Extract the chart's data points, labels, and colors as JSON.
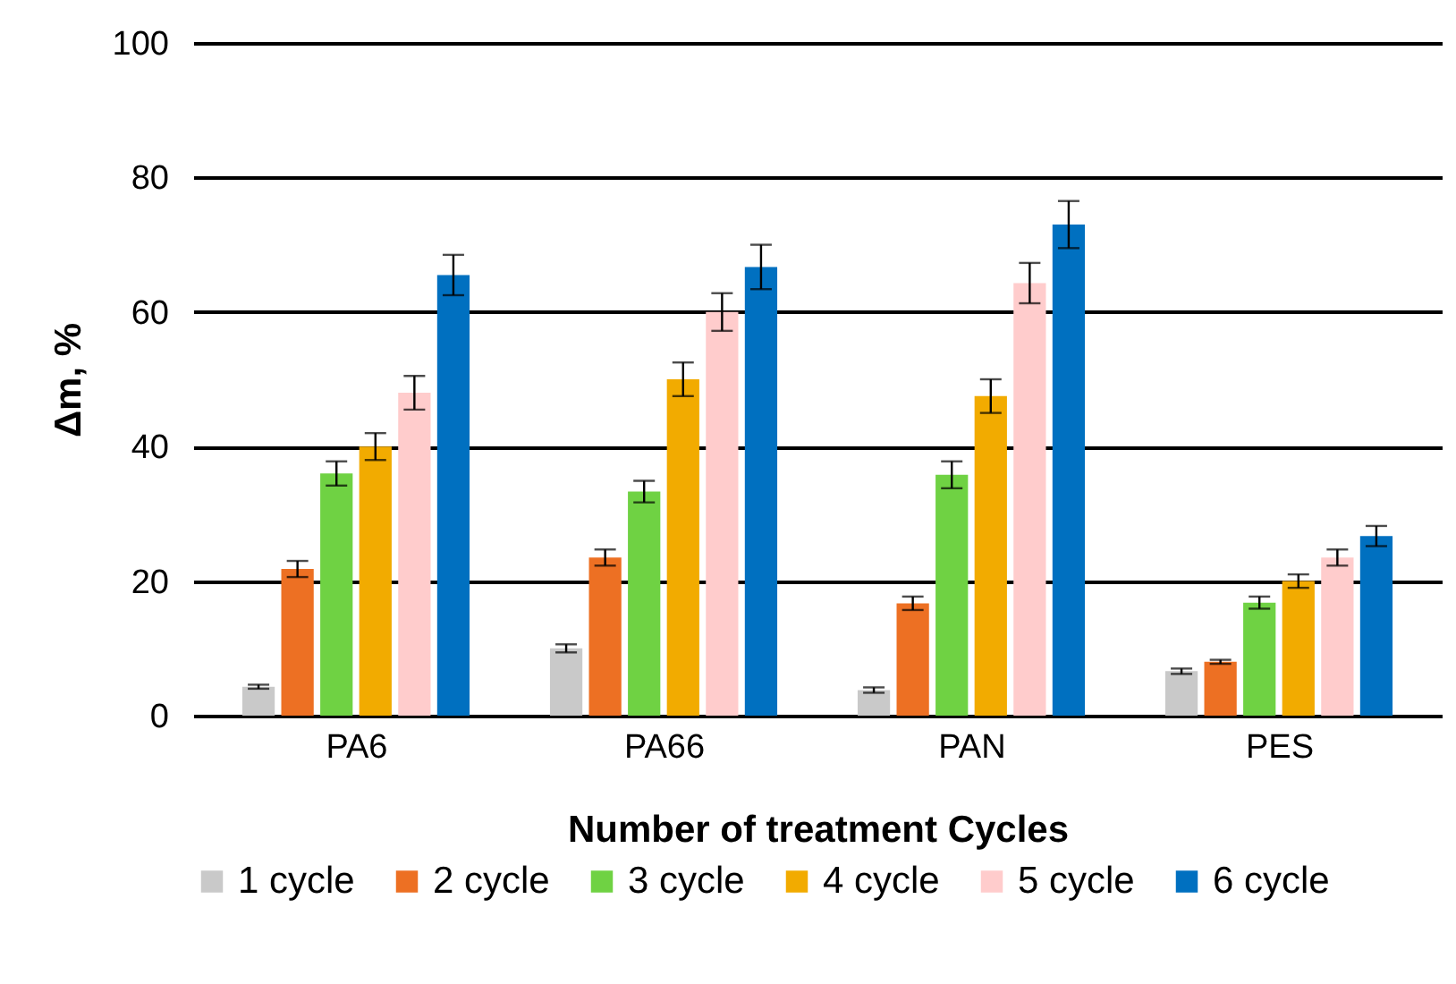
{
  "chart_data": {
    "type": "bar",
    "xlabel": "Number of treatment Cycles",
    "ylabel": "Δm, %",
    "categories": [
      "PA6",
      "PA66",
      "PAN",
      "PES"
    ],
    "series": [
      {
        "name": "1 cycle",
        "color": "#c9c9c9",
        "values": [
          4.3,
          10,
          3.8,
          6.6
        ],
        "errors": [
          0.3,
          0.6,
          0.4,
          0.4
        ]
      },
      {
        "name": "2 cycle",
        "color": "#ed7023",
        "values": [
          21.8,
          23.5,
          16.7,
          8
        ],
        "errors": [
          1.2,
          1.2,
          1,
          0.3
        ]
      },
      {
        "name": "3 cycle",
        "color": "#6fd243",
        "values": [
          36,
          33.3,
          35.8,
          16.8
        ],
        "errors": [
          1.8,
          1.6,
          2,
          0.9
        ]
      },
      {
        "name": "4 cycle",
        "color": "#f2ab00",
        "values": [
          40,
          50,
          47.5,
          20
        ],
        "errors": [
          2,
          2.5,
          2.5,
          1
        ]
      },
      {
        "name": "5 cycle",
        "color": "#ffcccc",
        "values": [
          48,
          60,
          64.3,
          23.5
        ],
        "errors": [
          2.5,
          2.8,
          3,
          1.2
        ]
      },
      {
        "name": "6 cycle",
        "color": "#0070c0",
        "values": [
          65.5,
          66.7,
          73,
          26.7
        ],
        "errors": [
          3,
          3.3,
          3.5,
          1.5
        ]
      }
    ],
    "ylim": [
      0,
      100
    ],
    "yticks": [
      0,
      20,
      40,
      60,
      80,
      100
    ],
    "grid": "y",
    "legend": "bottom"
  }
}
